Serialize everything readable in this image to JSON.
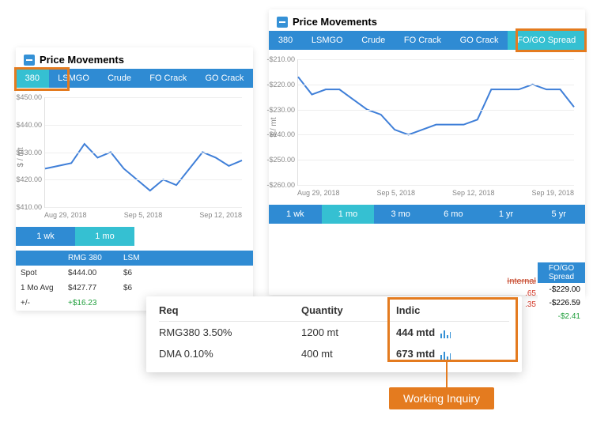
{
  "palette": {
    "tab_bg": "#2f8bd3",
    "tab_active": "#35c0d2",
    "grid": "#eeeeee",
    "axis": "#e0e0e0",
    "series": "#3f7fd8",
    "highlight": "#e47b1f",
    "pos": "#1e9e3a",
    "neg": "#d43c2c"
  },
  "left_panel": {
    "title": "Price Movements",
    "tabs": [
      "380",
      "LSMGO",
      "Crude",
      "FO Crack",
      "GO Crack"
    ],
    "active_tab": 0,
    "y_label": "$ / mt",
    "chart": {
      "type": "line",
      "ylim": [
        410,
        450
      ],
      "ytick_step": 10,
      "yticks": [
        "$410.00",
        "$420.00",
        "$430.00",
        "$440.00",
        "$450.00"
      ],
      "xticks": [
        "Aug 29, 2018",
        "Sep 5, 2018",
        "Sep 12, 2018"
      ],
      "line_color": "#3f7fd8",
      "line_width": 2,
      "values": [
        424,
        425,
        426,
        433,
        428,
        430,
        424,
        420,
        416,
        420,
        418,
        424,
        430,
        428,
        425,
        427
      ]
    },
    "ranges": [
      "1 wk",
      "1 mo"
    ],
    "active_range": 1,
    "table": {
      "columns": [
        "",
        "RMG 380",
        "LSM"
      ],
      "rows": [
        {
          "label": "Spot",
          "c1": "$444.00",
          "c2": "$6"
        },
        {
          "label": "1 Mo Avg",
          "c1": "$427.77",
          "c2": "$6"
        },
        {
          "label": "+/-",
          "c1": "+$16.23",
          "c1_class": "pos",
          "c2": ""
        }
      ]
    }
  },
  "right_panel": {
    "title": "Price Movements",
    "tabs": [
      "380",
      "LSMGO",
      "Crude",
      "FO Crack",
      "GO Crack",
      "FO/GO Spread"
    ],
    "active_tab": 5,
    "y_label": "$ / mt",
    "chart": {
      "type": "line",
      "ylim": [
        -260,
        -210
      ],
      "ytick_step": 10,
      "yticks": [
        "-$260.00",
        "-$250.00",
        "-$240.00",
        "-$230.00",
        "-$220.00",
        "-$210.00"
      ],
      "xticks": [
        "Aug 29, 2018",
        "Sep 5, 2018",
        "Sep 12, 2018",
        "Sep 19, 2018"
      ],
      "line_color": "#3f7fd8",
      "line_width": 2,
      "values": [
        -217,
        -224,
        -222,
        -222,
        -226,
        -230,
        -232,
        -238,
        -240,
        -238,
        -236,
        -236,
        -236,
        -234,
        -222,
        -222,
        -222,
        -220,
        -222,
        -222,
        -229
      ]
    },
    "ranges": [
      "1 wk",
      "1 mo",
      "3 mo",
      "6 mo",
      "1 yr",
      "5 yr"
    ],
    "active_range": 1,
    "fogo_column": {
      "header": "FO/GO Spread",
      "rows": [
        {
          "v": "-$229.00",
          "left_badge": ".65"
        },
        {
          "v": "-$226.59",
          "left_badge": ".35"
        },
        {
          "v": "-$2.41",
          "class": "pos"
        }
      ],
      "strike_label": "Internal"
    }
  },
  "inquiry": {
    "headers": {
      "req": "Req",
      "qty": "Quantity",
      "ind": "Indic"
    },
    "rows": [
      {
        "req": "RMG380 3.50%",
        "qty": "1200 mt",
        "ind": "444 mtd"
      },
      {
        "req": "DMA 0.10%",
        "qty": "400 mt",
        "ind": "673 mtd"
      }
    ],
    "callout": "Working Inquiry"
  }
}
